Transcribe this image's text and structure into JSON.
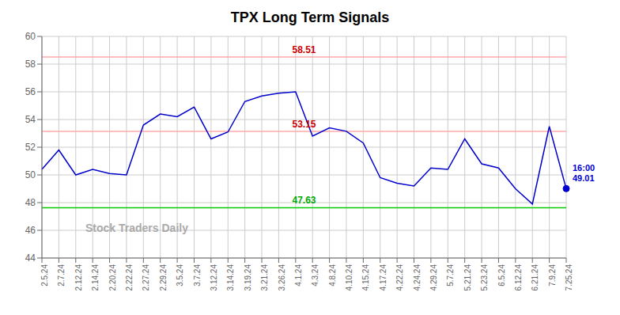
{
  "chart_data": {
    "type": "line",
    "title": "TPX Long Term Signals",
    "categories": [
      "2.5.24",
      "2.7.24",
      "2.12.24",
      "2.14.24",
      "2.20.24",
      "2.22.24",
      "2.27.24",
      "2.29.24",
      "3.5.24",
      "3.7.24",
      "3.12.24",
      "3.14.24",
      "3.19.24",
      "3.21.24",
      "3.26.24",
      "4.1.24",
      "4.3.24",
      "4.8.24",
      "4.10.24",
      "4.15.24",
      "4.17.24",
      "4.22.24",
      "4.24.24",
      "4.29.24",
      "5.7.24",
      "5.21.24",
      "5.23.24",
      "6.5.24",
      "6.12.24",
      "6.21.24",
      "7.9.24",
      "7.25.24"
    ],
    "values": [
      50.4,
      51.8,
      50.0,
      50.4,
      50.1,
      50.0,
      53.6,
      54.4,
      54.2,
      54.9,
      52.6,
      53.1,
      55.3,
      55.7,
      55.9,
      56.0,
      52.8,
      53.4,
      53.15,
      52.3,
      49.8,
      49.4,
      49.2,
      50.5,
      50.4,
      52.6,
      50.8,
      50.5,
      49.0,
      47.9,
      53.5,
      49.01
    ],
    "color": "#0000cc",
    "ylim": [
      44,
      60
    ],
    "yticks": [
      44,
      46,
      48,
      50,
      52,
      54,
      56,
      58,
      60
    ],
    "grid": true,
    "reference_lines": [
      {
        "value": 58.51,
        "color": "#ffaaaa",
        "label_color": "#cc0000"
      },
      {
        "value": 53.15,
        "color": "#ffaaaa",
        "label_color": "#cc0000"
      },
      {
        "value": 47.63,
        "color": "#00cc00",
        "label_color": "#00aa00"
      }
    ],
    "annotations": [
      {
        "text": "16:00\n49.01",
        "x": "7.25.24",
        "y": 49.01,
        "marker": "circle"
      }
    ],
    "watermark": {
      "text": "Stock Traders Daily",
      "color": "#aaaaaa"
    }
  }
}
